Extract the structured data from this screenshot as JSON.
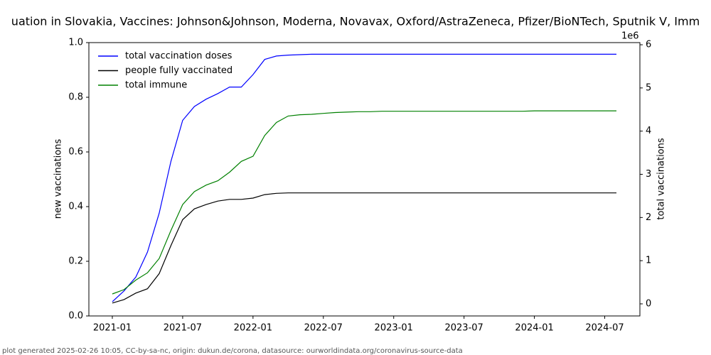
{
  "chart_data": {
    "type": "line",
    "title": "uation in Slovakia, Vaccines: Johnson&Johnson, Moderna, Novavax, Oxford/AstraZeneca, Pfizer/BioNTech, Sputnik V, Imm",
    "ylabel": "new vaccinations",
    "y2label": "total vaccinations",
    "y2_offset_label": "1e6",
    "footer": "plot generated 2025-02-26 10:05, CC-by-sa-nc, origin: dukun.de/corona, datasource: ourworldindata.org/coronavirus-source-data",
    "x": [
      "2021-01",
      "2021-02",
      "2021-03",
      "2021-04",
      "2021-05",
      "2021-06",
      "2021-07",
      "2021-08",
      "2021-09",
      "2021-10",
      "2021-11",
      "2021-12",
      "2022-01",
      "2022-02",
      "2022-03",
      "2022-04",
      "2022-05",
      "2022-06",
      "2022-07",
      "2022-08",
      "2022-09",
      "2022-10",
      "2022-11",
      "2022-12",
      "2023-01",
      "2023-02",
      "2023-03",
      "2023-04",
      "2023-05",
      "2023-06",
      "2023-07",
      "2023-08",
      "2023-09",
      "2023-10",
      "2023-11",
      "2023-12",
      "2024-01",
      "2024-02",
      "2024-03",
      "2024-04",
      "2024-05",
      "2024-06",
      "2024-07",
      "2024-08"
    ],
    "xlim": [
      "2020-11",
      "2024-10"
    ],
    "xticks": [
      "2021-01",
      "2021-07",
      "2022-01",
      "2022-07",
      "2023-01",
      "2023-07",
      "2024-01",
      "2024-07"
    ],
    "ylim": [
      0,
      1
    ],
    "yticks": [
      {
        "value": 0,
        "label": "0.0"
      },
      0.2,
      0.4,
      0.6,
      0.8,
      {
        "value": 1,
        "label": "1.0"
      }
    ],
    "y2lim": [
      -0.28,
      6.05
    ],
    "y2ticks": [
      0,
      1,
      2,
      3,
      4,
      5,
      6
    ],
    "legend": "upper left",
    "series": [
      {
        "name": "total vaccination doses",
        "color": "#0000ff",
        "axis": "y2",
        "values": [
          0.05,
          0.3,
          0.62,
          1.2,
          2.1,
          3.3,
          4.25,
          4.57,
          4.74,
          4.87,
          5.02,
          5.02,
          5.31,
          5.66,
          5.74,
          5.76,
          5.77,
          5.78,
          5.78,
          5.78,
          5.78,
          5.78,
          5.78,
          5.78,
          5.78,
          5.78,
          5.78,
          5.78,
          5.78,
          5.78,
          5.78,
          5.78,
          5.78,
          5.78,
          5.78,
          5.78,
          5.78,
          5.78,
          5.78,
          5.78,
          5.78,
          5.78,
          5.78,
          5.78
        ]
      },
      {
        "name": "people fully vaccinated",
        "color": "#000000",
        "axis": "y2",
        "values": [
          0.02,
          0.1,
          0.25,
          0.35,
          0.7,
          1.35,
          1.95,
          2.2,
          2.3,
          2.38,
          2.42,
          2.42,
          2.45,
          2.53,
          2.56,
          2.57,
          2.57,
          2.57,
          2.57,
          2.57,
          2.57,
          2.57,
          2.57,
          2.57,
          2.57,
          2.57,
          2.57,
          2.57,
          2.57,
          2.57,
          2.57,
          2.57,
          2.57,
          2.57,
          2.57,
          2.57,
          2.57,
          2.57,
          2.57,
          2.57,
          2.57,
          2.57,
          2.57,
          2.57
        ]
      },
      {
        "name": "total immune",
        "color": "#008000",
        "axis": "y2",
        "values": [
          0.23,
          0.33,
          0.55,
          0.72,
          1.05,
          1.7,
          2.3,
          2.6,
          2.75,
          2.85,
          3.05,
          3.3,
          3.42,
          3.9,
          4.2,
          4.35,
          4.38,
          4.39,
          4.41,
          4.43,
          4.44,
          4.45,
          4.45,
          4.46,
          4.46,
          4.46,
          4.46,
          4.46,
          4.46,
          4.46,
          4.46,
          4.46,
          4.46,
          4.46,
          4.46,
          4.46,
          4.47,
          4.47,
          4.47,
          4.47,
          4.47,
          4.47,
          4.47,
          4.47
        ]
      }
    ]
  }
}
